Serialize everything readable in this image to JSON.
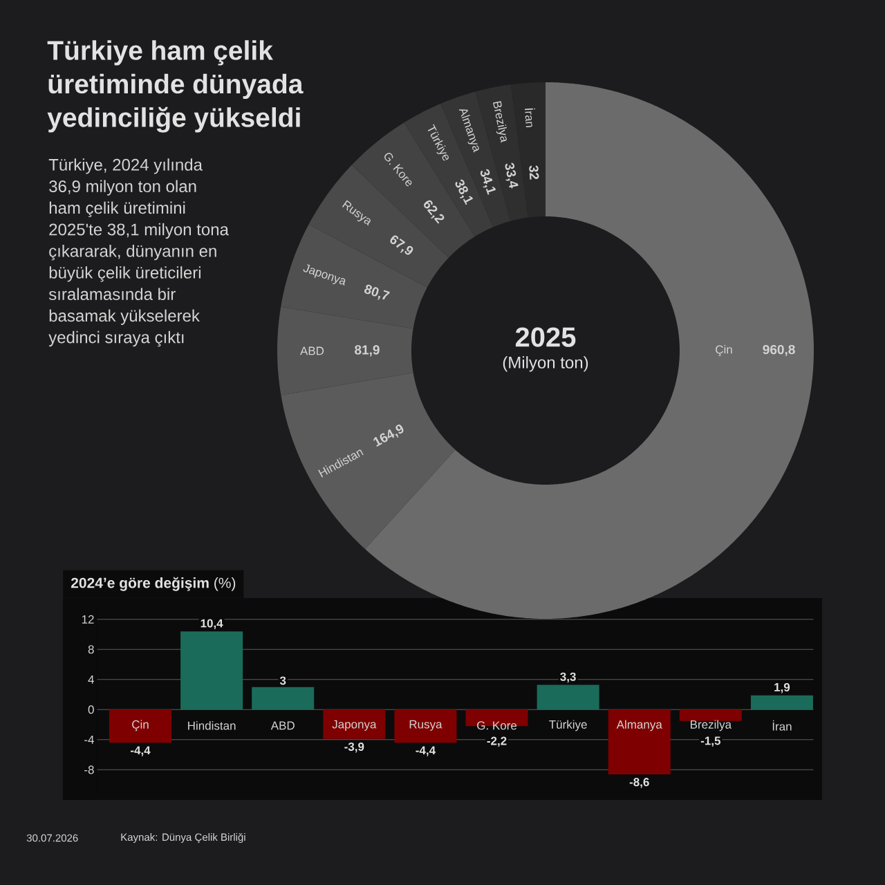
{
  "chart_data": [
    {
      "type": "donut",
      "title": "Türkiye ham çelik üretiminde dünyada yedinciliğe yükseldi",
      "subtitle": "Türkiye, 2024 yılında 36,9 milyon ton olan ham çelik üretimini 2025'te 38,1 milyon tona çıkararak, dünyanın en büyük çelik üreticileri sıralamasında bir basamak yükselerek yedinci sıraya çıktı",
      "categories": [
        "Çin",
        "Hindistan",
        "ABD",
        "Japonya",
        "Rusya",
        "G. Kore",
        "Türkiye",
        "Almanya",
        "Brezilya",
        "İran"
      ],
      "values": [
        960.8,
        164.9,
        81.9,
        80.7,
        67.9,
        62.2,
        38.1,
        34.1,
        33.4,
        32
      ],
      "value_labels": [
        "960,8",
        "164,9",
        "81,9",
        "80,7",
        "67,9",
        "62,2",
        "38,1",
        "34,1",
        "33,4",
        "32"
      ],
      "colors": [
        "#6b6b6b",
        "#5b5b5b",
        "#555555",
        "#505050",
        "#4a4a4a",
        "#434343",
        "#3c3c3c",
        "#353535",
        "#2f2f2f",
        "#292929"
      ],
      "annotations": [
        "2025",
        "(Milyon ton)"
      ]
    },
    {
      "type": "bar",
      "title": "**2024’e göre değişim** (%)",
      "categories": [
        "Çin",
        "Hindistan",
        "ABD",
        "Japonya",
        "Rusya",
        "G. Kore",
        "Türkiye",
        "Almanya",
        "Brezilya",
        "İran"
      ],
      "values": [
        -4.4,
        10.4,
        3,
        -3.9,
        -4.4,
        -2.2,
        3.3,
        -8.6,
        -1.5,
        1.9
      ],
      "value_labels": [
        "-4,4",
        "10,4",
        "3",
        "-3,9",
        "-4,4",
        "-2,2",
        "3,3",
        "-8,6",
        "-1,5",
        "1,9"
      ],
      "colors": [
        "#7f0000",
        "#1b6b5a",
        "#1b6b5a",
        "#7f0000",
        "#7f0000",
        "#7f0000",
        "#1b6b5a",
        "#7f0000",
        "#7f0000",
        "#1b6b5a"
      ],
      "ylim": [
        -11,
        14
      ],
      "yticks": [
        -8,
        -4,
        0,
        4,
        8,
        12
      ],
      "grid": "y",
      "annotations": [
        "30.07.2026",
        "Kaynak: Dünya Çelik Birliği"
      ]
    }
  ]
}
